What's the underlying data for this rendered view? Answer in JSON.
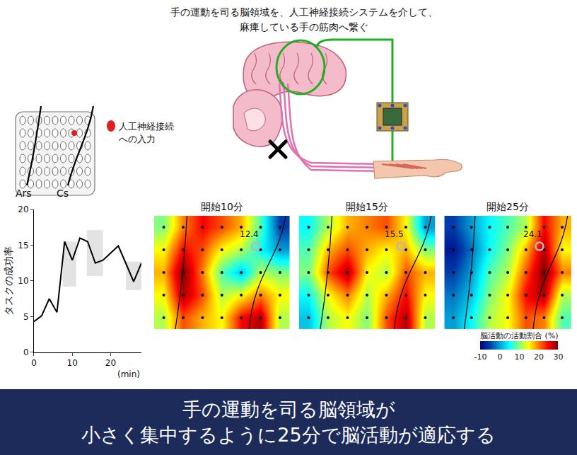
{
  "header": [
    "手の運動を司る脳領域を、人工神経接続システムを介して、",
    "麻痺している手の筋肉へ繋ぐ"
  ],
  "electrode_map": {
    "input_label": "人工神経接続への入力",
    "sulci": [
      "Ars",
      "Cs"
    ]
  },
  "banner": [
    "手の運動を司る脳領域が",
    "小さく集中するように25分で脳活動が適応する"
  ],
  "chart_data": [
    {
      "type": "line",
      "y_label": "タスクの成功率",
      "x_label": "(min)",
      "x": [
        0,
        2,
        4,
        6,
        8,
        10,
        12,
        14,
        16,
        18,
        22,
        26,
        28
      ],
      "values": [
        4.3,
        5.1,
        7.5,
        5.6,
        15.5,
        12.9,
        16.0,
        15.5,
        12.5,
        12.9,
        14.9,
        9.9,
        12.5
      ],
      "color": "#000000",
      "shaded_ranges": [
        {
          "x0": 7.5,
          "x1": 11,
          "y0": 9.2,
          "y1": 15.5
        },
        {
          "x0": 13.8,
          "x1": 18,
          "y0": 10.7,
          "y1": 17.1
        },
        {
          "x0": 24,
          "x1": 28,
          "y0": 8.7,
          "y1": 12.7
        }
      ],
      "xlim": [
        0,
        28
      ],
      "ylim": [
        0,
        20
      ],
      "xticks": [
        0,
        10,
        20
      ],
      "yticks": [
        0,
        5,
        10,
        15,
        20
      ],
      "grid": false
    },
    {
      "type": "heatmap",
      "tick_labels": false,
      "panels": [
        {
          "title": "開始10分",
          "input_value": 12.4,
          "z": [
            [
              10,
              20,
              25,
              22,
              18,
              8,
              -5
            ],
            [
              15,
              25,
              22,
              15,
              12,
              5,
              0
            ],
            [
              18,
              30,
              20,
              8,
              2,
              12,
              10
            ],
            [
              15,
              28,
              22,
              12,
              15,
              20,
              15
            ],
            [
              12,
              22,
              18,
              15,
              25,
              28,
              12
            ]
          ]
        },
        {
          "title": "開始15分",
          "input_value": 15.5,
          "z": [
            [
              5,
              12,
              18,
              20,
              22,
              15,
              0
            ],
            [
              8,
              18,
              22,
              18,
              15,
              18,
              10
            ],
            [
              10,
              22,
              28,
              15,
              12,
              22,
              18
            ],
            [
              5,
              15,
              20,
              12,
              18,
              25,
              15
            ],
            [
              2,
              12,
              15,
              10,
              22,
              28,
              12
            ]
          ]
        },
        {
          "title": "開始25分",
          "input_value": 24.1,
          "z": [
            [
              -5,
              0,
              5,
              8,
              12,
              25,
              18
            ],
            [
              -8,
              -2,
              5,
              10,
              18,
              28,
              15
            ],
            [
              -5,
              0,
              8,
              12,
              22,
              30,
              20
            ],
            [
              -2,
              2,
              10,
              15,
              25,
              28,
              12
            ],
            [
              0,
              5,
              12,
              15,
              22,
              20,
              8
            ]
          ]
        }
      ],
      "colorbar": {
        "title": "脳活動の活動割合 (%)",
        "range": [
          -10,
          30
        ],
        "ticks": [
          -10,
          0,
          10,
          20,
          30
        ]
      }
    }
  ]
}
